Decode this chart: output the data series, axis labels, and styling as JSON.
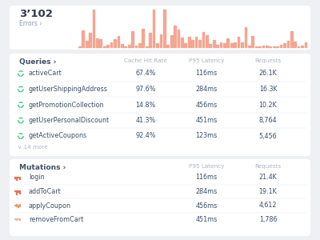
{
  "bg_color": "#eef0f4",
  "panel_color": "#ffffff",
  "title": "3’102",
  "subtitle": "Errors ›",
  "bar_color": "#f4a08a",
  "queries_header": "Queries ›",
  "queries_columns": [
    "Cache Hit Rate",
    "P95 Latency",
    "Requests"
  ],
  "queries": [
    {
      "name": "activeCart",
      "cache": "67.4%",
      "latency": "116ms",
      "requests": "26.1K"
    },
    {
      "name": "getUserShippingAddress",
      "cache": "97.6%",
      "latency": "284ms",
      "requests": "16.3K"
    },
    {
      "name": "getPromotionCollection",
      "cache": "14.8%",
      "latency": "456ms",
      "requests": "10.2K"
    },
    {
      "name": "getUserPersonalDiscount",
      "cache": "41.3%",
      "latency": "451ms",
      "requests": "8,764"
    },
    {
      "name": "getActiveCoupons",
      "cache": "92.4%",
      "latency": "123ms",
      "requests": "5,456"
    }
  ],
  "more_label": "∨ 14 more",
  "mutations_header": "Mutations ›",
  "mutations_columns": [
    "P95 Latency",
    "Requests"
  ],
  "mutations": [
    {
      "name": "login",
      "latency": "116ms",
      "requests": "21.4K"
    },
    {
      "name": "addToCart",
      "latency": "284ms",
      "requests": "19.1K"
    },
    {
      "name": "applyCoupon",
      "latency": "456ms",
      "requests": "4,612"
    },
    {
      "name": "removeFromCart",
      "latency": "451ms",
      "requests": "1,786"
    }
  ],
  "header_color": "#aab4be",
  "text_color": "#2d3a4a",
  "name_color": "#3d5068",
  "more_color": "#aab4be",
  "section_header_color": "#3d5068",
  "divider_color": "#eaecf0",
  "icon_green": "#3ec98e",
  "icon_green_dashed": "#3ec98e",
  "mutation_icon_colors": [
    "#e07050",
    "#e07050",
    "#e89a70",
    "#e8b898"
  ]
}
